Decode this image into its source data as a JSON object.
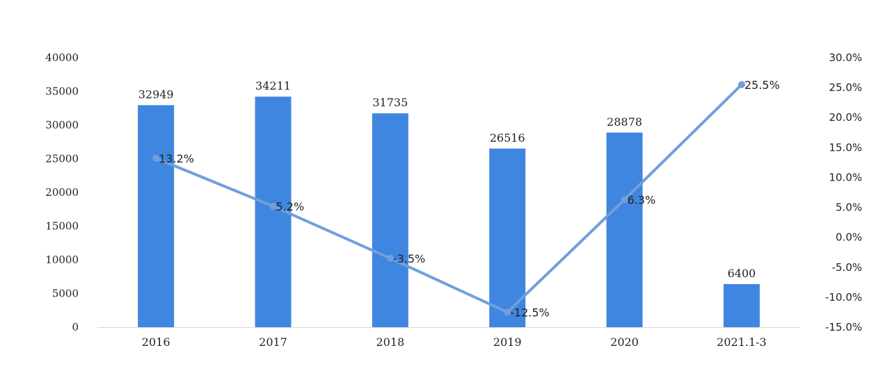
{
  "chart_data": {
    "type": "bar",
    "categories": [
      "2016",
      "2017",
      "2018",
      "2019",
      "2020",
      "2021.1-3"
    ],
    "series": [
      {
        "type": "bar",
        "values": [
          32949,
          34211,
          31735,
          26516,
          28878,
          6400
        ],
        "labels": [
          "32949",
          "34211",
          "31735",
          "26516",
          "28878",
          "6400"
        ],
        "color": "#3f86e0",
        "axis": "left"
      },
      {
        "type": "line",
        "values": [
          13.2,
          5.2,
          -3.5,
          -12.5,
          6.3,
          25.5
        ],
        "labels": [
          "13.2%",
          "5.2%",
          "-3.5%",
          "-12.5%",
          "6.3%",
          "25.5%"
        ],
        "color": "#6fa0dc",
        "axis": "right"
      }
    ],
    "y_left": {
      "min": 0,
      "max": 40000,
      "ticks": [
        "0",
        "5000",
        "10000",
        "15000",
        "20000",
        "25000",
        "30000",
        "35000",
        "40000"
      ]
    },
    "y_right": {
      "min": -15,
      "max": 30,
      "ticks": [
        "-15.0%",
        "-10.0%",
        "-5.0%",
        "0.0%",
        "5.0%",
        "10.0%",
        "15.0%",
        "20.0%",
        "25.0%",
        "30.0%"
      ]
    },
    "grid": false,
    "legend": "none"
  }
}
